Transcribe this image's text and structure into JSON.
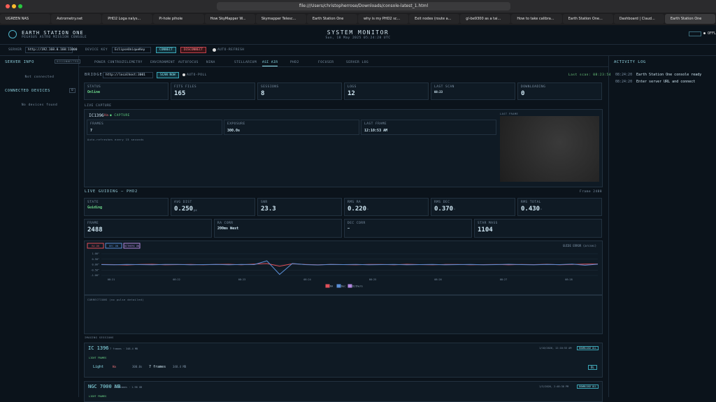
{
  "browser": {
    "url": "file:///Users/christopherrose/Downloads/console-latest_1.html",
    "tabs": [
      "UGREEN NAS",
      "Astrometry.net",
      "PHD2 Loga nalys...",
      "Pi-hole pihole",
      "How SkyMapper W...",
      "Skymapper Telesc...",
      "Earth Station One",
      "why is my PHD2 sc...",
      "Exit nodes (route a...",
      "gl-be9300 as a tai...",
      "How to take calibra...",
      "Earth Station One...",
      "Dashboard | Claud...",
      "Earth Station One"
    ]
  },
  "header": {
    "title": "EARTH STATION ONE",
    "subtitle": "PEGASUS ASTRO MISSION CONSOLE",
    "monitor": "SYSTEM MONITOR",
    "date": "Sun, 18 May 2025 05:24:28 UTC",
    "status": "● OFFLINE"
  },
  "server_bar": {
    "server_label": "SERVER",
    "server_url": "http://192.168.0.160:11000",
    "key_label": "DEVICE KEY",
    "key": "EclipseUniqueKey",
    "connect": "CONNECT",
    "disconnect": "DISCONNECT",
    "auto_refresh": "AUTO-REFRESH"
  },
  "sidebar": {
    "server_info": "SERVER INFO",
    "server_state": "DISCONNECTED",
    "not_connected": "Not connected",
    "devices": "CONNECTED DEVICES",
    "device_count": 0,
    "no_devices": "No devices found"
  },
  "nav": [
    "POWER CONTROL",
    "TELEMETRY",
    "ENVIRONMENT",
    "AUTOFOCUS",
    "NINA",
    "STELLARIUM",
    "ASI AIR",
    "PHD2",
    "FOCUSER",
    "SERVER LOG"
  ],
  "bridge": {
    "label": "BRIDGE",
    "url": "http://localhost:3001",
    "scan": "SCAN NOW",
    "auto_poll": "AUTO-POLL",
    "last_scan": "Last scan: 08:23:54",
    "stats": [
      {
        "label": "STATUS",
        "value": "Online"
      },
      {
        "label": "FITS FILES",
        "value": 165
      },
      {
        "label": "SESSIONS",
        "value": 8
      },
      {
        "label": "LOGS",
        "value": 12
      },
      {
        "label": "LAST SCAN",
        "value": "08:23"
      },
      {
        "label": "DOWNLOADING",
        "value": 0
      }
    ]
  },
  "capture": {
    "section": "LIVE CAPTURE",
    "target": "IC1396",
    "filter": "Ha",
    "state": "● CAPTURE",
    "stats": [
      {
        "label": "FRAMES",
        "value": 7
      },
      {
        "label": "EXPOSURE",
        "value": "300.0s"
      },
      {
        "label": "LAST FRAME",
        "value": "12:10:53 AM"
      }
    ],
    "note": "Auto-refreshes every 15 seconds",
    "image_label": "LAST FRAME"
  },
  "guiding": {
    "section": "LIVE GUIDING — PHD2",
    "frame": "Frame 2488",
    "row1": [
      {
        "label": "STATE",
        "value": "Guiding"
      },
      {
        "label": "AVG DIST",
        "value": "0.250",
        "unit": "px"
      },
      {
        "label": "SNR",
        "value": "23.3"
      },
      {
        "label": "RMS RA",
        "value": "0.220",
        "unit": "\""
      },
      {
        "label": "RMS DEC",
        "value": "0.370",
        "unit": "\""
      },
      {
        "label": "RMS TOTAL",
        "value": "0.430",
        "unit": "\""
      }
    ],
    "row2": [
      {
        "label": "FRAME",
        "value": 2488
      },
      {
        "label": "RA CORR",
        "value": "200ms West"
      },
      {
        "label": "DEC CORR",
        "value": "—"
      },
      {
        "label": "STAR MASS",
        "value": 1104
      }
    ]
  },
  "chart_data": {
    "type": "line",
    "title": "GUIDE ERROR (arcsec)",
    "toggles": [
      "RA ON",
      "DEC ON",
      "DITHERS ON"
    ],
    "ylim": [
      -1,
      1
    ],
    "yticks": [
      {
        "value": 1,
        "label": "1.00\""
      },
      {
        "value": 0.5,
        "label": "0.50\""
      },
      {
        "value": 0,
        "label": "0.00\""
      },
      {
        "value": -0.5,
        "label": "-0.50\""
      },
      {
        "value": -1,
        "label": "-1.00\""
      }
    ],
    "xticks": [
      "08:21",
      "08:22",
      "08:23",
      "08:24",
      "08:25",
      "08:26",
      "08:27",
      "08:28",
      "08:29"
    ],
    "series": [
      {
        "name": "RA",
        "color": "#e0505a",
        "values": [
          0.02,
          0.0,
          -0.03,
          0.01,
          0.03,
          -0.02,
          0.0,
          0.02,
          -0.01,
          0.01,
          0.03,
          -0.02,
          0.05,
          0.1,
          -0.15,
          0.08,
          0.02,
          -0.02,
          0.01,
          0.0,
          -0.02,
          0.02,
          0.01,
          -0.01,
          0.03,
          0.0,
          -0.02,
          0.01,
          0.02,
          -0.01,
          0.0,
          0.02,
          -0.02,
          0.01,
          0.0,
          0.03,
          -0.01,
          0.02,
          0.05,
          0.06
        ]
      },
      {
        "name": "Dec",
        "color": "#5b8fd6",
        "values": [
          0.0,
          -0.02,
          0.02,
          0.0,
          -0.01,
          0.02,
          0.01,
          -0.02,
          0.0,
          0.01,
          -0.01,
          0.02,
          0.0,
          0.35,
          -0.9,
          0.1,
          0.0,
          -0.03,
          0.02,
          0.0,
          0.01,
          -0.02,
          0.0,
          0.02,
          -0.01,
          0.0,
          0.01,
          -0.02,
          0.0,
          0.02,
          -0.01,
          0.0,
          0.03,
          0.0,
          -0.02,
          0.01,
          0.0,
          0.05,
          -0.06,
          0.04
        ]
      },
      {
        "name": "Dithers",
        "color": "#b48ae0",
        "values": []
      }
    ]
  },
  "corrections": "CORRECTIONS (no pulse detailed)",
  "sessions": {
    "section": "IMAGING SESSIONS",
    "items": [
      {
        "name": "IC 1396",
        "meta": "7 frames · 348.4 MB",
        "date": "1/10/2026, 12:10:53 AM",
        "download": "DOWNLOAD ALL",
        "group": "LIGHT FRAMES",
        "row": [
          "Light",
          "Ha",
          "300.0s",
          "7 frames",
          "348.4 MB",
          "DL"
        ]
      },
      {
        "name": "NGC 7000 NB",
        "meta": "46 frames · 1.96 GB",
        "date": "1/3/2026, 2:48:38 PM",
        "download": "DOWNLOAD ALL",
        "group": "LIGHT FRAMES"
      }
    ]
  },
  "activity": {
    "title": "ACTIVITY LOG",
    "entries": [
      {
        "time": "08:24:20",
        "text": "Earth Station One console ready"
      },
      {
        "time": "08:24:20",
        "text": "Enter server URL and connect"
      }
    ]
  }
}
